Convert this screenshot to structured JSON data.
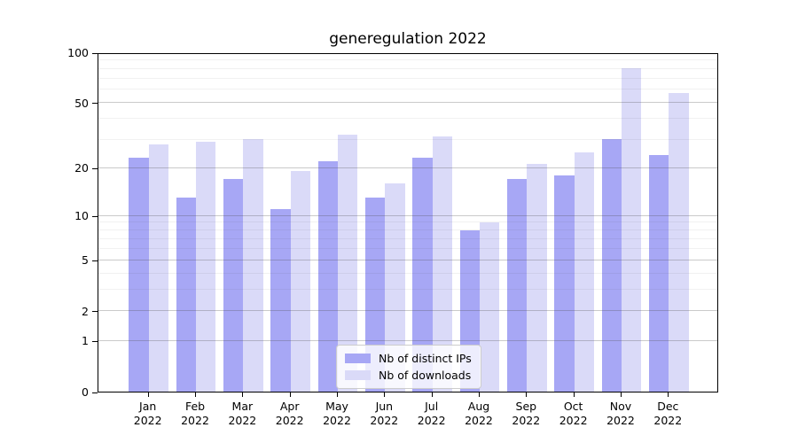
{
  "chart_data": {
    "type": "bar",
    "title": "generegulation 2022",
    "categories": [
      "Jan",
      "Feb",
      "Mar",
      "Apr",
      "May",
      "Jun",
      "Jul",
      "Aug",
      "Sep",
      "Oct",
      "Nov",
      "Dec"
    ],
    "category_year": "2022",
    "series": [
      {
        "name": "Nb of distinct IPs",
        "color": "#a7a7f5",
        "values": [
          23,
          13,
          17,
          11,
          22,
          13,
          23,
          8,
          17,
          18,
          30,
          24
        ]
      },
      {
        "name": "Nb of downloads",
        "color": "#dadaf8",
        "values": [
          28,
          29,
          30,
          19,
          32,
          16,
          31,
          9,
          21,
          25,
          80,
          57
        ]
      }
    ],
    "xlabel": "",
    "ylabel": "",
    "yscale": "log1p",
    "ylim": [
      0,
      100
    ],
    "y_major_ticks": [
      0,
      1,
      2,
      5,
      10,
      20,
      50,
      100
    ],
    "y_minor_ticks": [
      3,
      4,
      6,
      7,
      8,
      9,
      30,
      40,
      60,
      70,
      80,
      90
    ],
    "grid": true,
    "grid_above_bars": true,
    "legend_position": "lower center"
  }
}
